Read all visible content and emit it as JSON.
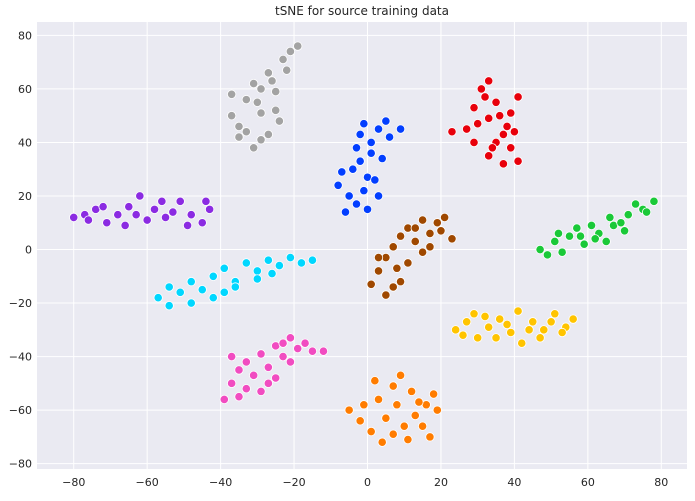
{
  "chart_data": {
    "type": "scatter",
    "title": "tSNE for source training data",
    "xlabel": "",
    "ylabel": "",
    "xlim": [
      -90,
      87
    ],
    "ylim": [
      -82,
      85
    ],
    "xticks": [
      -80,
      -60,
      -40,
      -20,
      0,
      20,
      40,
      60,
      80
    ],
    "yticks": [
      -80,
      -60,
      -40,
      -20,
      0,
      20,
      40,
      60,
      80
    ],
    "grid": true,
    "legend": "none",
    "style": {
      "background": "#EAEAF2",
      "grid_color": "#ffffff",
      "marker_edge": "#ffffff"
    },
    "clusters": [
      {
        "color": "#a3a3a3",
        "points": [
          [
            -35,
            46
          ],
          [
            -33,
            56
          ],
          [
            -31,
            62
          ],
          [
            -29,
            51
          ],
          [
            -27,
            66
          ],
          [
            -25,
            59
          ],
          [
            -23,
            71
          ],
          [
            -21,
            74
          ],
          [
            -19,
            76
          ],
          [
            -29,
            41
          ],
          [
            -31,
            38
          ],
          [
            -35,
            42
          ],
          [
            -37,
            50
          ],
          [
            -37,
            58
          ],
          [
            -33,
            44
          ],
          [
            -29,
            60
          ],
          [
            -25,
            52
          ],
          [
            -22,
            67
          ],
          [
            -27,
            43
          ],
          [
            -24,
            48
          ],
          [
            -30,
            55
          ],
          [
            -26,
            63
          ]
        ]
      },
      {
        "color": "#023eff",
        "points": [
          [
            -5,
            20
          ],
          [
            -3,
            17
          ],
          [
            -6,
            14
          ],
          [
            -1,
            22
          ],
          [
            0,
            27
          ],
          [
            -2,
            33
          ],
          [
            1,
            40
          ],
          [
            3,
            45
          ],
          [
            -2,
            43
          ],
          [
            5,
            48
          ],
          [
            9,
            45
          ],
          [
            -8,
            24
          ],
          [
            3,
            20
          ],
          [
            1,
            36
          ],
          [
            -4,
            30
          ],
          [
            2,
            26
          ],
          [
            -7,
            29
          ],
          [
            4,
            34
          ],
          [
            -1,
            47
          ],
          [
            6,
            42
          ],
          [
            -3,
            38
          ],
          [
            0,
            15
          ]
        ]
      },
      {
        "color": "#e8000b",
        "points": [
          [
            27,
            45
          ],
          [
            29,
            53
          ],
          [
            31,
            60
          ],
          [
            33,
            63
          ],
          [
            35,
            55
          ],
          [
            33,
            49
          ],
          [
            37,
            43
          ],
          [
            39,
            38
          ],
          [
            41,
            33
          ],
          [
            37,
            32
          ],
          [
            39,
            51
          ],
          [
            41,
            57
          ],
          [
            23,
            44
          ],
          [
            29,
            40
          ],
          [
            35,
            40
          ],
          [
            33,
            35
          ],
          [
            30,
            47
          ],
          [
            36,
            50
          ],
          [
            38,
            46
          ],
          [
            32,
            57
          ],
          [
            40,
            44
          ],
          [
            34,
            38
          ]
        ]
      },
      {
        "color": "#8b2be2",
        "points": [
          [
            -80,
            12
          ],
          [
            -77,
            13
          ],
          [
            -74,
            15
          ],
          [
            -71,
            10
          ],
          [
            -68,
            13
          ],
          [
            -65,
            16
          ],
          [
            -62,
            20
          ],
          [
            -58,
            15
          ],
          [
            -55,
            12
          ],
          [
            -51,
            18
          ],
          [
            -48,
            13
          ],
          [
            -45,
            10
          ],
          [
            -43,
            15
          ],
          [
            -60,
            11
          ],
          [
            -66,
            9
          ],
          [
            -72,
            16
          ],
          [
            -56,
            18
          ],
          [
            -49,
            9
          ],
          [
            -53,
            14
          ],
          [
            -63,
            13
          ],
          [
            -76,
            11
          ],
          [
            -44,
            18
          ]
        ]
      },
      {
        "color": "#1ac938",
        "points": [
          [
            47,
            0
          ],
          [
            51,
            3
          ],
          [
            55,
            5
          ],
          [
            59,
            2
          ],
          [
            63,
            6
          ],
          [
            67,
            9
          ],
          [
            71,
            13
          ],
          [
            75,
            15
          ],
          [
            78,
            18
          ],
          [
            49,
            -2
          ],
          [
            53,
            -1
          ],
          [
            57,
            8
          ],
          [
            61,
            9
          ],
          [
            65,
            3
          ],
          [
            69,
            10
          ],
          [
            73,
            17
          ],
          [
            76,
            14
          ],
          [
            52,
            6
          ],
          [
            58,
            5
          ],
          [
            66,
            12
          ],
          [
            70,
            7
          ],
          [
            62,
            4
          ]
        ]
      },
      {
        "color": "#9f4800",
        "points": [
          [
            1,
            -13
          ],
          [
            3,
            -8
          ],
          [
            5,
            -3
          ],
          [
            7,
            1
          ],
          [
            9,
            5
          ],
          [
            11,
            8
          ],
          [
            13,
            3
          ],
          [
            15,
            -1
          ],
          [
            17,
            6
          ],
          [
            19,
            10
          ],
          [
            21,
            12
          ],
          [
            23,
            4
          ],
          [
            5,
            -17
          ],
          [
            9,
            -12
          ],
          [
            11,
            -5
          ],
          [
            3,
            -3
          ],
          [
            7,
            -14
          ],
          [
            13,
            8
          ],
          [
            17,
            1
          ],
          [
            20,
            7
          ],
          [
            8,
            -7
          ],
          [
            15,
            11
          ]
        ]
      },
      {
        "color": "#00d7ff",
        "points": [
          [
            -57,
            -18
          ],
          [
            -54,
            -21
          ],
          [
            -51,
            -16
          ],
          [
            -48,
            -12
          ],
          [
            -45,
            -15
          ],
          [
            -42,
            -10
          ],
          [
            -39,
            -7
          ],
          [
            -36,
            -12
          ],
          [
            -33,
            -5
          ],
          [
            -30,
            -8
          ],
          [
            -27,
            -4
          ],
          [
            -24,
            -6
          ],
          [
            -21,
            -3
          ],
          [
            -18,
            -5
          ],
          [
            -15,
            -4
          ],
          [
            -48,
            -20
          ],
          [
            -42,
            -18
          ],
          [
            -36,
            -14
          ],
          [
            -30,
            -11
          ],
          [
            -54,
            -14
          ],
          [
            -26,
            -9
          ],
          [
            -39,
            -16
          ]
        ]
      },
      {
        "color": "#ffc400",
        "points": [
          [
            24,
            -30
          ],
          [
            27,
            -27
          ],
          [
            30,
            -33
          ],
          [
            33,
            -29
          ],
          [
            36,
            -26
          ],
          [
            39,
            -31
          ],
          [
            42,
            -35
          ],
          [
            45,
            -27
          ],
          [
            48,
            -30
          ],
          [
            51,
            -24
          ],
          [
            54,
            -29
          ],
          [
            56,
            -26
          ],
          [
            29,
            -24
          ],
          [
            35,
            -33
          ],
          [
            41,
            -23
          ],
          [
            47,
            -33
          ],
          [
            53,
            -31
          ],
          [
            26,
            -32
          ],
          [
            32,
            -25
          ],
          [
            38,
            -28
          ],
          [
            44,
            -30
          ],
          [
            50,
            -27
          ]
        ]
      },
      {
        "color": "#f14cc1",
        "points": [
          [
            -39,
            -56
          ],
          [
            -37,
            -50
          ],
          [
            -35,
            -45
          ],
          [
            -33,
            -42
          ],
          [
            -31,
            -47
          ],
          [
            -29,
            -39
          ],
          [
            -27,
            -44
          ],
          [
            -25,
            -36
          ],
          [
            -23,
            -40
          ],
          [
            -21,
            -33
          ],
          [
            -19,
            -37
          ],
          [
            -17,
            -35
          ],
          [
            -15,
            -38
          ],
          [
            -12,
            -38
          ],
          [
            -37,
            -40
          ],
          [
            -33,
            -52
          ],
          [
            -29,
            -53
          ],
          [
            -25,
            -48
          ],
          [
            -21,
            -42
          ],
          [
            -35,
            -55
          ],
          [
            -27,
            -50
          ],
          [
            -23,
            -35
          ]
        ]
      },
      {
        "color": "#ff7c00",
        "points": [
          [
            -5,
            -60
          ],
          [
            -2,
            -64
          ],
          [
            1,
            -68
          ],
          [
            4,
            -72
          ],
          [
            7,
            -69
          ],
          [
            10,
            -66
          ],
          [
            13,
            -62
          ],
          [
            16,
            -58
          ],
          [
            18,
            -54
          ],
          [
            3,
            -56
          ],
          [
            7,
            -51
          ],
          [
            9,
            -47
          ],
          [
            12,
            -53
          ],
          [
            -1,
            -58
          ],
          [
            5,
            -63
          ],
          [
            11,
            -71
          ],
          [
            15,
            -66
          ],
          [
            19,
            -60
          ],
          [
            2,
            -49
          ],
          [
            8,
            -58
          ],
          [
            14,
            -57
          ],
          [
            17,
            -70
          ]
        ]
      }
    ]
  }
}
